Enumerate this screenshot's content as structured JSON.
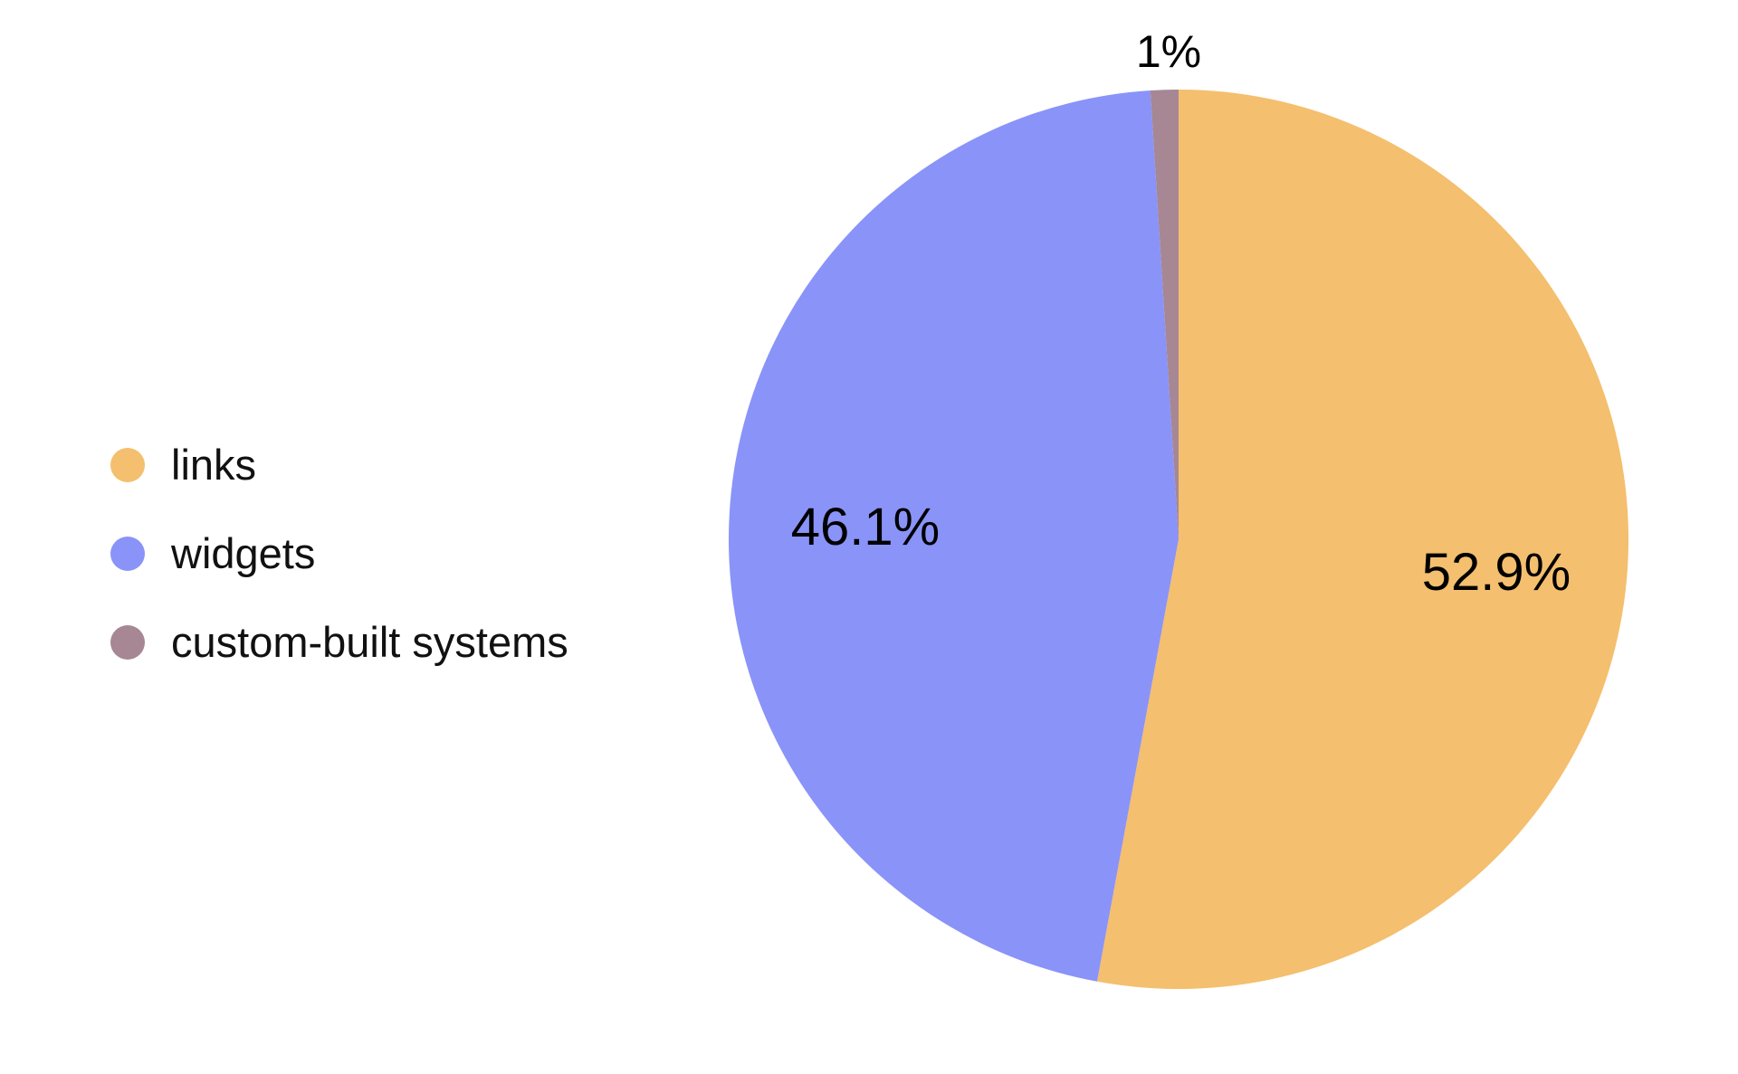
{
  "chart_data": {
    "type": "pie",
    "title": "",
    "start_angle_deg": 0,
    "direction": "clockwise",
    "legend_position": "left",
    "background_color": "#ffffff",
    "label_color": "#000000",
    "categories": [
      "links",
      "widgets",
      "custom-built systems"
    ],
    "values": [
      52.9,
      46.1,
      1
    ],
    "slices": [
      {
        "label": "links",
        "value": 52.9,
        "pct_label": "52.9%",
        "color": "#F4BF6E",
        "label_placement": "inside"
      },
      {
        "label": "widgets",
        "value": 46.1,
        "pct_label": "46.1%",
        "color": "#8A93F8",
        "label_placement": "inside"
      },
      {
        "label": "custom-built systems",
        "value": 1,
        "pct_label": "1%",
        "color": "#A68793",
        "label_placement": "outside"
      }
    ]
  }
}
